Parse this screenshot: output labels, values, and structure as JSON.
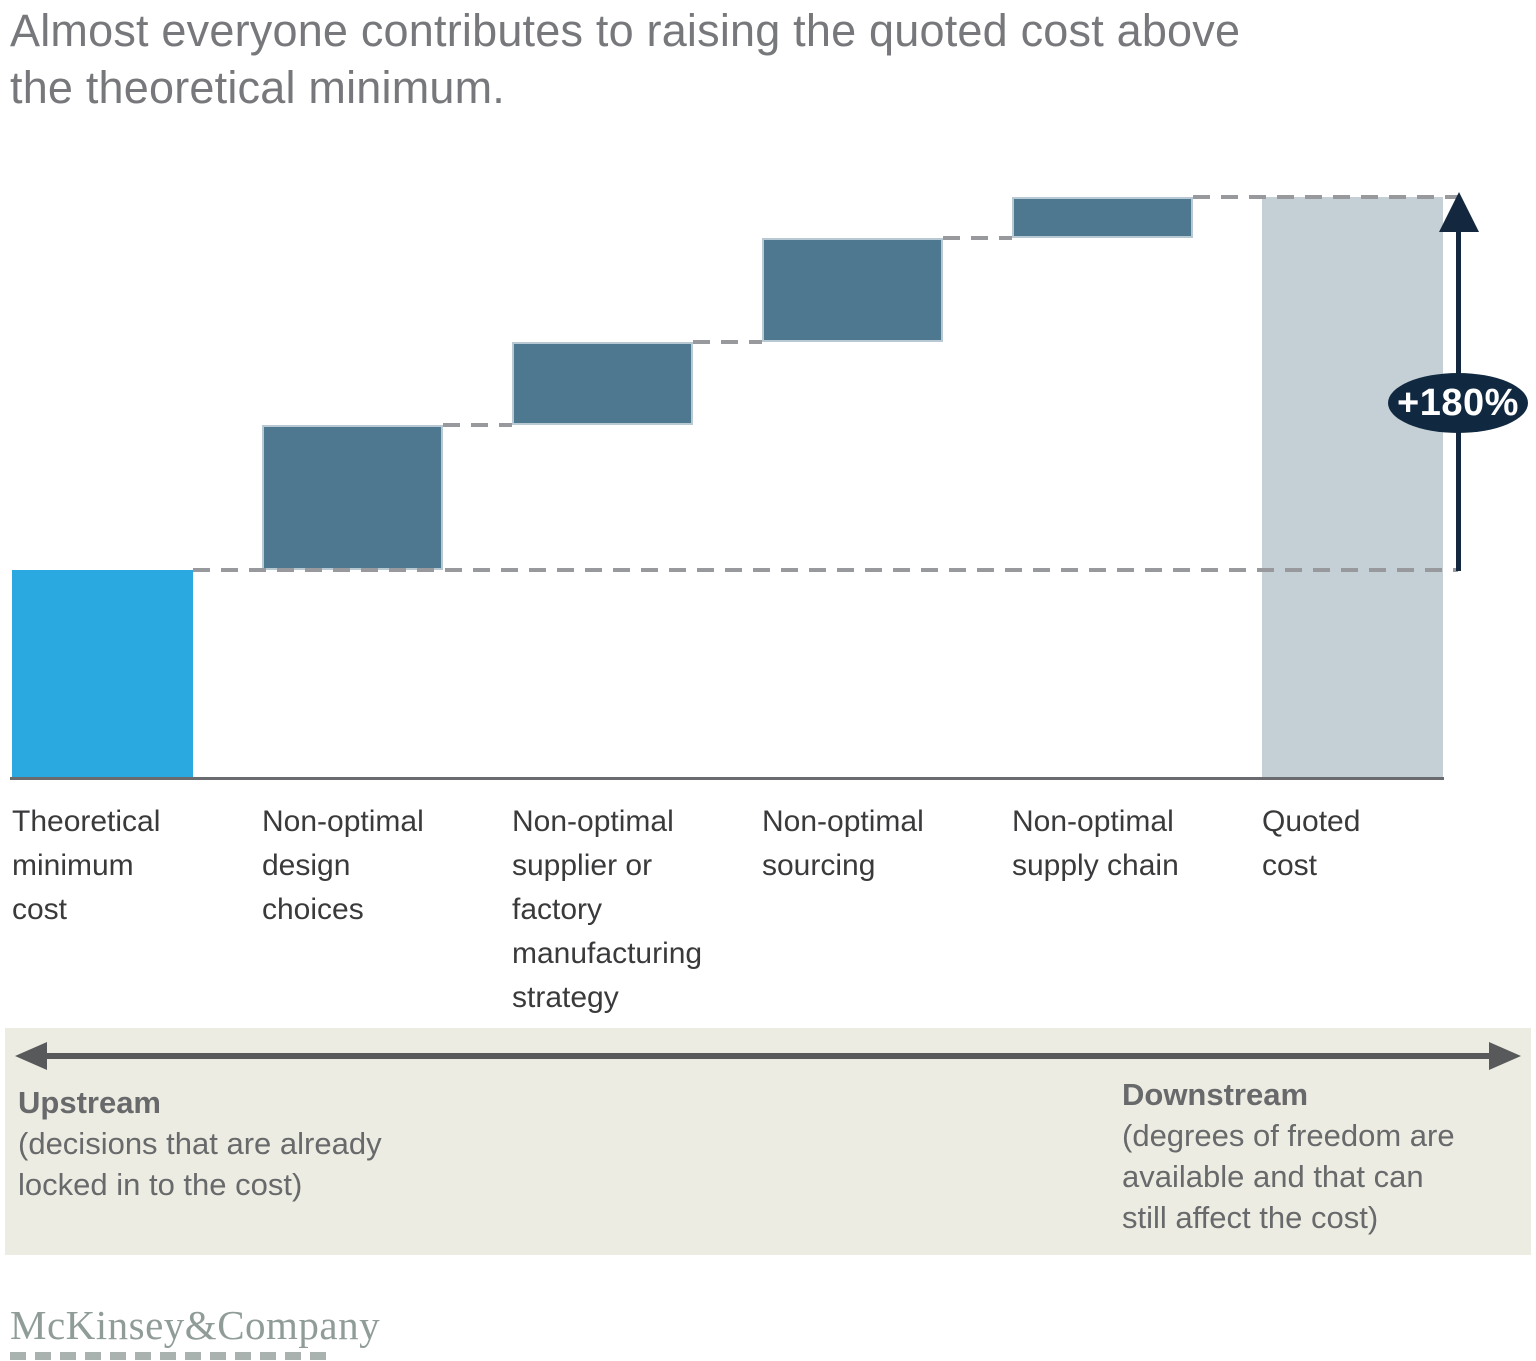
{
  "title": "Almost everyone contributes to raising the quoted cost above\nthe theoretical minimum.",
  "chart_data": {
    "type": "bar",
    "subtype": "waterfall",
    "categories": [
      "Theoretical\nminimum\ncost",
      "Non-optimal\ndesign\nchoices",
      "Non-optimal\nsupplier or\nfactory\nmanufacturing\nstrategy",
      "Non-optimal\nsourcing",
      "Non-optimal\nsupply chain",
      "Quoted\ncost"
    ],
    "values": [
      100,
      70,
      40,
      50,
      20,
      280
    ],
    "bar_roles": [
      "base",
      "delta",
      "delta",
      "delta",
      "delta",
      "total"
    ],
    "ylim": [
      0,
      280
    ],
    "grid": false,
    "annotation": "+180%",
    "colors": {
      "base": "#29A9E0",
      "delta": "#4D7890",
      "total": "#C5D0D6",
      "annotation_bg": "#112940",
      "annotation_text": "#FFFFFF",
      "dashed_connector": "#97999C"
    }
  },
  "footer_panel": {
    "upstream_title": "Upstream",
    "upstream_note": "(decisions that are already\nlocked in to the cost)",
    "downstream_title": "Downstream",
    "downstream_note": "(degrees of freedom are\navailable and that can\nstill affect the cost)"
  },
  "branding": {
    "logo": "McKinsey&Company"
  }
}
